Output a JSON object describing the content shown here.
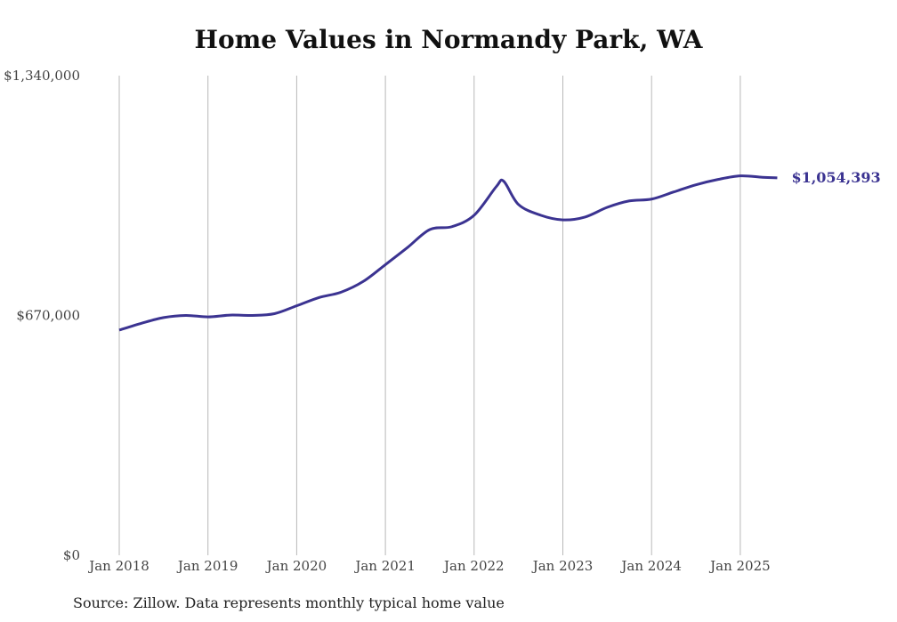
{
  "chart_data": {
    "type": "line",
    "title": "Home Values in Normandy Park, WA",
    "xlabel": "",
    "ylabel": "",
    "x_tick_labels": [
      "Jan 2018",
      "Jan 2019",
      "Jan 2020",
      "Jan 2021",
      "Jan 2022",
      "Jan 2023",
      "Jan 2024",
      "Jan 2025"
    ],
    "y_tick_labels": [
      "$0",
      "$670,000",
      "$1,340,000"
    ],
    "ylim": [
      0,
      1340000
    ],
    "grid": "vertical",
    "line_color": "#3b3391",
    "end_label": "$1,054,393",
    "series": [
      {
        "x": [
          "2018-01",
          "2018-04",
          "2018-07",
          "2018-10",
          "2019-01",
          "2019-04",
          "2019-07",
          "2019-10",
          "2020-01",
          "2020-04",
          "2020-07",
          "2020-10",
          "2021-01",
          "2021-04",
          "2021-07",
          "2021-10",
          "2022-01",
          "2022-04",
          "2022-05",
          "2022-07",
          "2022-10",
          "2023-01",
          "2023-04",
          "2023-07",
          "2023-10",
          "2024-01",
          "2024-04",
          "2024-07",
          "2024-10",
          "2025-01",
          "2025-04",
          "2025-06"
        ],
        "y": [
          629000,
          648000,
          664000,
          670000,
          666000,
          671000,
          670000,
          675000,
          697000,
          720000,
          735000,
          765000,
          812000,
          860000,
          910000,
          918000,
          950000,
          1030000,
          1045000,
          980000,
          950000,
          937000,
          945000,
          972000,
          990000,
          995000,
          1015000,
          1035000,
          1050000,
          1060000,
          1056000,
          1054393
        ]
      }
    ]
  },
  "source_note": "Source: Zillow. Data represents monthly typical home value"
}
